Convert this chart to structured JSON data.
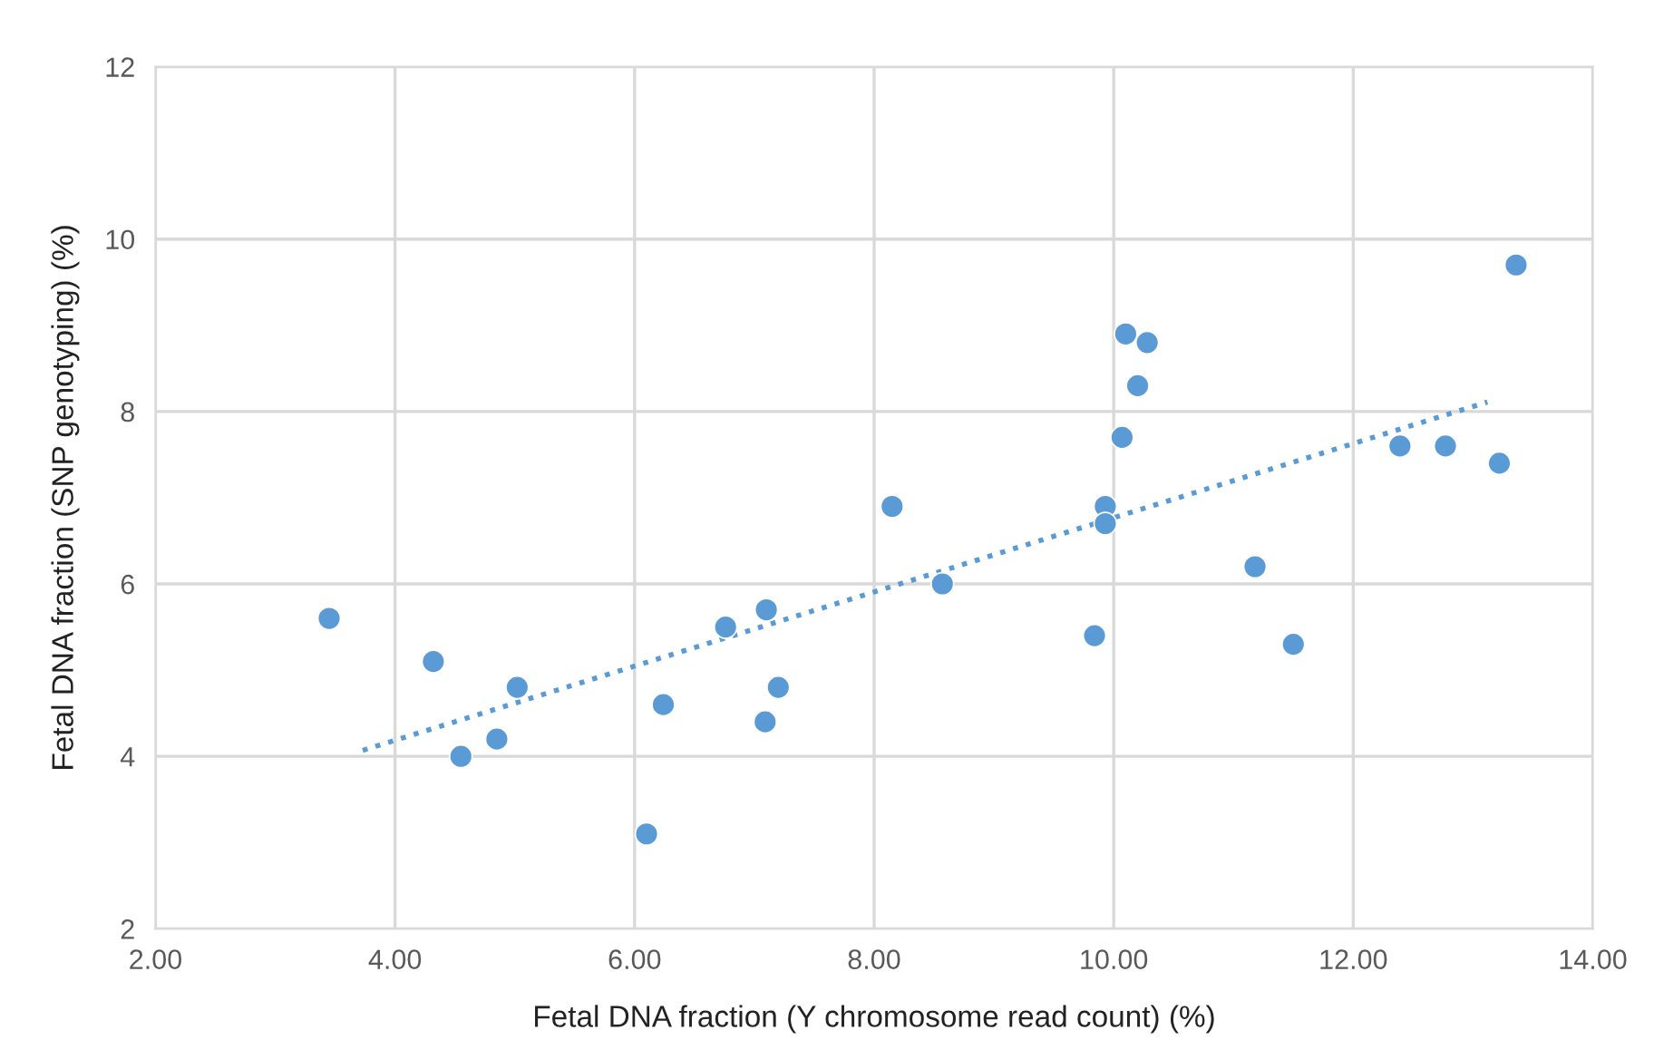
{
  "chart_data": {
    "type": "scatter",
    "xlabel": "Fetal DNA fraction (Y chromosome read count) (%)",
    "ylabel": "Fetal DNA fraction (SNP genotyping) (%)",
    "xlim": [
      2,
      14
    ],
    "ylim": [
      2,
      12
    ],
    "xticks": [
      {
        "value": 2,
        "label": "2.00"
      },
      {
        "value": 4,
        "label": "4.00"
      },
      {
        "value": 6,
        "label": "6.00"
      },
      {
        "value": 8,
        "label": "8.00"
      },
      {
        "value": 10,
        "label": "10.00"
      },
      {
        "value": 12,
        "label": "12.00"
      },
      {
        "value": 14,
        "label": "14.00"
      }
    ],
    "yticks": [
      2,
      4,
      6,
      8,
      10,
      12
    ],
    "grid": true,
    "marker": "circle",
    "series": [
      {
        "color": "#5b9bd5",
        "x": [
          3.45,
          4.32,
          4.55,
          4.85,
          5.02,
          6.1,
          6.24,
          6.76,
          7.1,
          7.2,
          7.09,
          8.15,
          8.57,
          9.93,
          9.93,
          9.84,
          10.07,
          10.1,
          10.28,
          10.2,
          11.18,
          11.5,
          12.39,
          12.77,
          13.22,
          13.36
        ],
        "values": [
          5.6,
          5.1,
          4.0,
          4.2,
          4.8,
          3.1,
          4.6,
          5.5,
          5.7,
          4.8,
          4.4,
          6.9,
          6.0,
          6.9,
          6.7,
          5.4,
          7.7,
          8.9,
          8.8,
          8.3,
          6.2,
          5.3,
          7.6,
          7.6,
          7.4,
          9.7
        ]
      },
      {
        "type": "line",
        "color": "#5b9bd5",
        "line_style": "dotted",
        "marker": "none",
        "x": [
          3.73,
          13.12
        ],
        "values": [
          4.07,
          8.11
        ]
      }
    ]
  }
}
